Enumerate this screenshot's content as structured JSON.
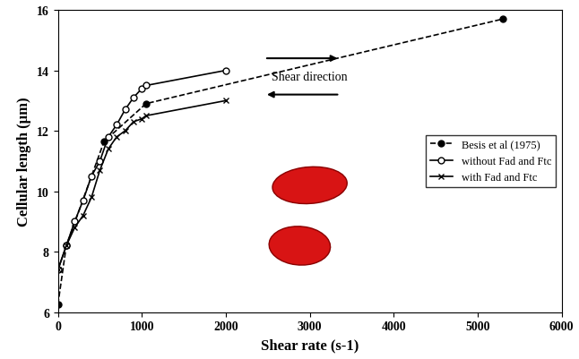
{
  "chart_data": {
    "type": "line",
    "x_label": "Shear rate (s-1)",
    "y_label": "Cellular length (µm)",
    "annotation": "Shear direction",
    "xlim": [
      0,
      6000
    ],
    "xticks": [
      0,
      1000,
      2000,
      3000,
      4000,
      5000,
      6000
    ],
    "ylim": [
      6,
      16
    ],
    "yticks": [
      6,
      8,
      10,
      12,
      14,
      16
    ],
    "legend": "center right",
    "series": [
      {
        "name": "Besis et al (1975)",
        "color": "#000000",
        "marker": "filled_circle",
        "line_style": "dashed",
        "x": [
          0,
          100,
          550,
          1050,
          5300
        ],
        "values": [
          6.25,
          8.2,
          11.65,
          12.9,
          15.7
        ]
      },
      {
        "name": "without Fad and Ftc",
        "color": "#000000",
        "marker": "open_circle",
        "line_style": "solid",
        "x": [
          0,
          100,
          200,
          300,
          400,
          500,
          600,
          700,
          800,
          900,
          1000,
          1050,
          2000
        ],
        "values": [
          7.4,
          8.2,
          9.0,
          9.7,
          10.5,
          11.0,
          11.8,
          12.2,
          12.7,
          13.1,
          13.4,
          13.5,
          14.0
        ]
      },
      {
        "name": "with Fad and Ftc",
        "color": "#000000",
        "marker": "x",
        "line_style": "solid",
        "x": [
          0,
          100,
          200,
          300,
          400,
          500,
          600,
          700,
          800,
          900,
          1000,
          1050,
          2000
        ],
        "values": [
          7.4,
          8.2,
          8.8,
          9.2,
          9.8,
          10.7,
          11.4,
          11.8,
          12.0,
          12.3,
          12.4,
          12.5,
          13.0
        ]
      }
    ]
  }
}
